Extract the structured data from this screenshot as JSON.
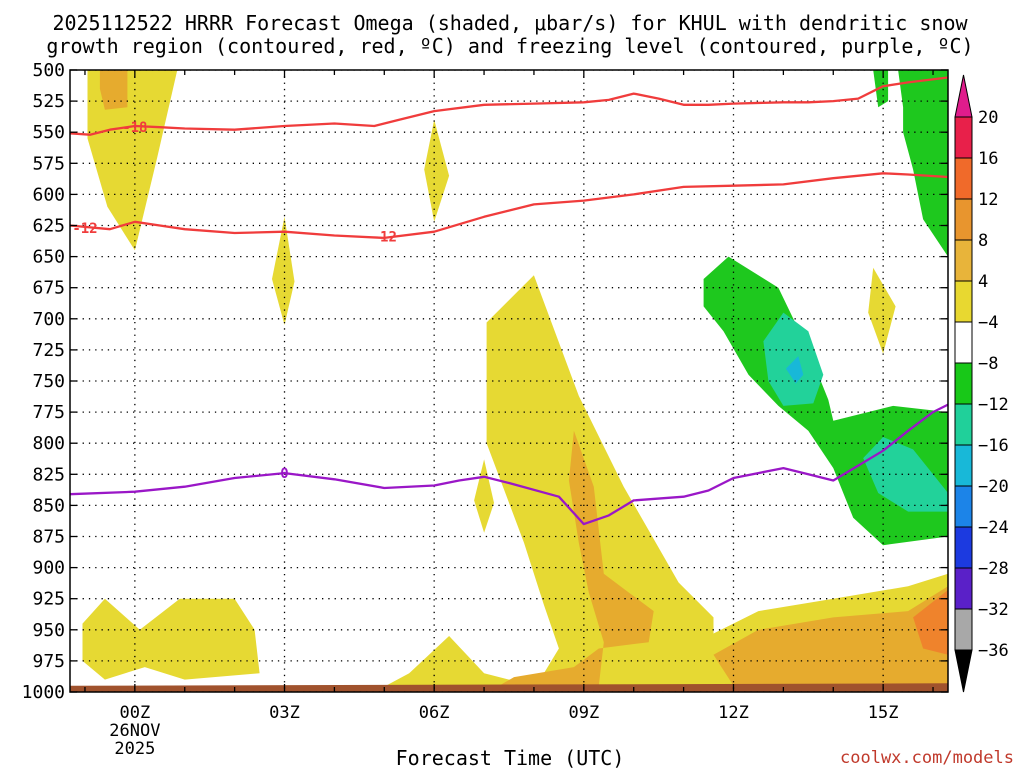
{
  "chart_data": {
    "type": "heatmap",
    "title_line1": "2025112522 HRRR Forecast Omega (shaded, μbar/s) for KHUL with dendritic snow",
    "title_line2": "growth region (contoured, red, ºC) and freezing level (contoured, purple, ºC)",
    "xlabel": "Forecast Time (UTC)",
    "credit": "coolwx.com/models",
    "x_range": [
      -1.3,
      16.3
    ],
    "y_range": [
      500,
      1000
    ],
    "y_ticks": [
      500,
      525,
      550,
      575,
      600,
      625,
      650,
      675,
      700,
      725,
      750,
      775,
      800,
      825,
      850,
      875,
      900,
      925,
      950,
      975,
      1000
    ],
    "x_ticks": [
      {
        "hour": 0,
        "label": "00Z",
        "sub1": "26NOV",
        "sub2": "2025"
      },
      {
        "hour": 3,
        "label": "03Z",
        "sub1": "",
        "sub2": ""
      },
      {
        "hour": 6,
        "label": "06Z",
        "sub1": "",
        "sub2": ""
      },
      {
        "hour": 9,
        "label": "09Z",
        "sub1": "",
        "sub2": ""
      },
      {
        "hour": 12,
        "label": "12Z",
        "sub1": "",
        "sub2": ""
      },
      {
        "hour": 15,
        "label": "15Z",
        "sub1": "",
        "sub2": ""
      }
    ],
    "colorbar": {
      "labels": [
        "20",
        "16",
        "12",
        "8",
        "4",
        "−4",
        "−8",
        "−12",
        "−16",
        "−20",
        "−24",
        "−28",
        "−32",
        "−36"
      ],
      "colors": [
        "#e8204a",
        "#f06a2a",
        "#e8952e",
        "#e8b43a",
        "#e8d830",
        "#ffffff",
        "#18c818",
        "#20d09a",
        "#18b8d8",
        "#1c84e8",
        "#1c3ae0",
        "#5a20c8",
        "#a010c8",
        "#a8a8a8"
      ],
      "top_arrow_color": "#e01c8c",
      "bottom_arrow_color": "#000000"
    },
    "omega_regions": [
      {
        "bin": "4 to 8",
        "color": "#e6d933",
        "points": [
          [
            -0.95,
            500
          ],
          [
            0.85,
            500
          ],
          [
            0.45,
            570
          ],
          [
            0.0,
            645
          ],
          [
            -0.55,
            610
          ],
          [
            -0.95,
            555
          ]
        ]
      },
      {
        "bin": "8 to 12",
        "color": "#e6ab2e",
        "points": [
          [
            -0.7,
            500
          ],
          [
            -0.15,
            500
          ],
          [
            -0.15,
            530
          ],
          [
            -0.6,
            532
          ],
          [
            -0.7,
            515
          ]
        ]
      },
      {
        "bin": "4 to 8",
        "color": "#e6d933",
        "points": [
          [
            6.0,
            540
          ],
          [
            6.3,
            585
          ],
          [
            6.0,
            622
          ],
          [
            5.8,
            580
          ]
        ]
      },
      {
        "bin": "4 to 8",
        "color": "#e6d933",
        "points": [
          [
            3.0,
            618
          ],
          [
            3.2,
            670
          ],
          [
            3.0,
            705
          ],
          [
            2.75,
            668
          ]
        ]
      },
      {
        "bin": "4 to 8",
        "color": "#e6d933",
        "points": [
          [
            7.0,
            813
          ],
          [
            7.2,
            848
          ],
          [
            7.0,
            872
          ],
          [
            6.8,
            846
          ]
        ]
      },
      {
        "bin": "4 to 8",
        "color": "#e6d933",
        "points": [
          [
            14.8,
            659
          ],
          [
            15.25,
            690
          ],
          [
            15.0,
            728
          ],
          [
            14.7,
            695
          ]
        ]
      },
      {
        "bin": "4 to 8",
        "color": "#e6d933",
        "points": [
          [
            7.05,
            703
          ],
          [
            8.0,
            665
          ],
          [
            8.9,
            762
          ],
          [
            9.8,
            835
          ],
          [
            10.9,
            912
          ],
          [
            11.6,
            940
          ],
          [
            11.6,
            1000
          ],
          [
            9.2,
            1000
          ],
          [
            8.8,
            985
          ],
          [
            7.5,
            990
          ],
          [
            7.0,
            985
          ],
          [
            6.3,
            955
          ],
          [
            5.5,
            985
          ],
          [
            4.8,
            1000
          ],
          [
            8.6,
            1000
          ],
          [
            8.2,
            985
          ],
          [
            8.5,
            965
          ],
          [
            8.2,
            930
          ],
          [
            7.8,
            880
          ],
          [
            7.05,
            800
          ]
        ]
      },
      {
        "bin": "4 to 8",
        "color": "#e6d933",
        "points": [
          [
            -1.05,
            945
          ],
          [
            -0.6,
            925
          ],
          [
            0.1,
            950
          ],
          [
            0.9,
            925
          ],
          [
            2.0,
            925
          ],
          [
            2.4,
            950
          ],
          [
            2.5,
            985
          ],
          [
            1.0,
            990
          ],
          [
            0.2,
            980
          ],
          [
            -0.6,
            990
          ],
          [
            -1.05,
            975
          ]
        ]
      },
      {
        "bin": "4 to 8",
        "color": "#e6d933",
        "points": [
          [
            11.5,
            955
          ],
          [
            12.5,
            935
          ],
          [
            14.0,
            925
          ],
          [
            15.5,
            915
          ],
          [
            16.3,
            905
          ],
          [
            16.3,
            1000
          ],
          [
            11.5,
            1000
          ]
        ]
      },
      {
        "bin": "8 to 12",
        "color": "#e6ab2e",
        "points": [
          [
            8.8,
            790
          ],
          [
            9.2,
            835
          ],
          [
            9.4,
            905
          ],
          [
            9.9,
            920
          ],
          [
            10.4,
            935
          ],
          [
            10.3,
            960
          ],
          [
            9.3,
            965
          ],
          [
            8.8,
            980
          ],
          [
            7.6,
            988
          ],
          [
            7.3,
            995
          ],
          [
            9.3,
            995
          ],
          [
            9.4,
            960
          ],
          [
            9.1,
            920
          ],
          [
            8.9,
            880
          ],
          [
            8.7,
            830
          ]
        ]
      },
      {
        "bin": "8 to 12",
        "color": "#e6ab2e",
        "points": [
          [
            11.6,
            970
          ],
          [
            12.5,
            950
          ],
          [
            14.0,
            940
          ],
          [
            15.5,
            935
          ],
          [
            16.3,
            915
          ],
          [
            16.3,
            995
          ],
          [
            12.0,
            995
          ]
        ]
      },
      {
        "bin": "12 to 16",
        "color": "#ef832c",
        "points": [
          [
            15.6,
            940
          ],
          [
            16.3,
            918
          ],
          [
            16.3,
            970
          ],
          [
            15.8,
            965
          ]
        ]
      },
      {
        "bin": "-8 to -4",
        "color": "#1ec81e",
        "points": [
          [
            14.8,
            500
          ],
          [
            15.1,
            500
          ],
          [
            15.1,
            525
          ],
          [
            14.9,
            530
          ]
        ]
      },
      {
        "bin": "-8 to -4",
        "color": "#1ec81e",
        "points": [
          [
            15.3,
            500
          ],
          [
            16.3,
            500
          ],
          [
            16.3,
            650
          ],
          [
            15.8,
            620
          ],
          [
            15.6,
            580
          ],
          [
            15.4,
            550
          ],
          [
            15.4,
            530
          ]
        ]
      },
      {
        "bin": "-8 to -4",
        "color": "#1ec81e",
        "points": [
          [
            11.4,
            668
          ],
          [
            11.9,
            650
          ],
          [
            12.9,
            675
          ],
          [
            13.5,
            725
          ],
          [
            13.9,
            765
          ],
          [
            14.0,
            782
          ],
          [
            15.2,
            770
          ],
          [
            16.3,
            775
          ],
          [
            16.3,
            875
          ],
          [
            15.0,
            882
          ],
          [
            14.4,
            860
          ],
          [
            14.0,
            820
          ],
          [
            13.5,
            790
          ],
          [
            12.9,
            770
          ],
          [
            12.3,
            745
          ],
          [
            11.8,
            710
          ],
          [
            11.4,
            690
          ]
        ]
      },
      {
        "bin": "-12 to -8",
        "color": "#22d29a",
        "points": [
          [
            12.6,
            718
          ],
          [
            13.0,
            695
          ],
          [
            13.5,
            710
          ],
          [
            13.8,
            745
          ],
          [
            13.6,
            768
          ],
          [
            13.0,
            770
          ],
          [
            12.7,
            750
          ]
        ]
      },
      {
        "bin": "-12 to -8",
        "color": "#22d29a",
        "points": [
          [
            14.6,
            812
          ],
          [
            15.0,
            795
          ],
          [
            15.6,
            805
          ],
          [
            16.0,
            825
          ],
          [
            16.3,
            840
          ],
          [
            16.3,
            855
          ],
          [
            15.5,
            855
          ],
          [
            14.9,
            840
          ]
        ]
      },
      {
        "bin": "-16 to -12",
        "color": "#18b8d8",
        "points": [
          [
            13.05,
            740
          ],
          [
            13.3,
            730
          ],
          [
            13.4,
            745
          ],
          [
            13.25,
            752
          ]
        ]
      }
    ],
    "surface": {
      "color": "#a0522d",
      "points": [
        [
          -1.3,
          995
        ],
        [
          16.3,
          993
        ],
        [
          16.3,
          1000
        ],
        [
          -1.3,
          1000
        ]
      ]
    },
    "contours": [
      {
        "color": "#f03c3c",
        "label": "-18",
        "label_at": [
          0.0,
          546
        ],
        "points": [
          [
            -1.3,
            551
          ],
          [
            -0.9,
            552
          ],
          [
            -0.5,
            548
          ],
          [
            0.0,
            545
          ],
          [
            0.5,
            546
          ],
          [
            1.0,
            547
          ],
          [
            2.0,
            548
          ],
          [
            3.0,
            545
          ],
          [
            4.0,
            543
          ],
          [
            4.8,
            545
          ],
          [
            5.3,
            540
          ],
          [
            6.0,
            533
          ],
          [
            7.0,
            528
          ],
          [
            8.0,
            527
          ],
          [
            9.0,
            526
          ],
          [
            9.5,
            524
          ],
          [
            10.0,
            519
          ],
          [
            10.5,
            523
          ],
          [
            11.0,
            528
          ],
          [
            11.5,
            528
          ],
          [
            12.0,
            527
          ],
          [
            13.0,
            526
          ],
          [
            13.5,
            526
          ],
          [
            14.0,
            525
          ],
          [
            14.5,
            523
          ],
          [
            15.0,
            513
          ],
          [
            15.5,
            510
          ],
          [
            16.3,
            506
          ]
        ]
      },
      {
        "color": "#f03c3c",
        "label": "-12",
        "label_at": [
          -1.0,
          627
        ],
        "label2": "-12",
        "label2_at": [
          5.0,
          634
        ],
        "points": [
          [
            -1.3,
            625
          ],
          [
            -0.5,
            628
          ],
          [
            0.0,
            622
          ],
          [
            0.5,
            625
          ],
          [
            1.0,
            628
          ],
          [
            2.0,
            631
          ],
          [
            3.0,
            630
          ],
          [
            4.0,
            633
          ],
          [
            5.0,
            635
          ],
          [
            6.0,
            630
          ],
          [
            7.0,
            618
          ],
          [
            8.0,
            608
          ],
          [
            9.0,
            605
          ],
          [
            10.0,
            600
          ],
          [
            11.0,
            594
          ],
          [
            12.0,
            593
          ],
          [
            13.0,
            592
          ],
          [
            14.0,
            587
          ],
          [
            15.0,
            583
          ],
          [
            15.5,
            584
          ],
          [
            16.3,
            586
          ]
        ]
      },
      {
        "color": "#9a17c7",
        "label": "0",
        "label_at": [
          3.0,
          824
        ],
        "points": [
          [
            -1.3,
            841
          ],
          [
            0.0,
            839
          ],
          [
            1.0,
            835
          ],
          [
            2.0,
            828
          ],
          [
            3.0,
            824
          ],
          [
            4.0,
            829
          ],
          [
            5.0,
            836
          ],
          [
            6.0,
            834
          ],
          [
            6.5,
            830
          ],
          [
            7.0,
            827
          ],
          [
            7.5,
            832
          ],
          [
            8.5,
            843
          ],
          [
            9.0,
            865
          ],
          [
            9.5,
            858
          ],
          [
            10.0,
            846
          ],
          [
            11.0,
            843
          ],
          [
            11.5,
            838
          ],
          [
            12.0,
            828
          ],
          [
            13.0,
            820
          ],
          [
            13.5,
            825
          ],
          [
            14.0,
            830
          ],
          [
            14.5,
            818
          ],
          [
            15.0,
            806
          ],
          [
            15.5,
            790
          ],
          [
            16.0,
            775
          ],
          [
            16.3,
            769
          ]
        ]
      }
    ]
  }
}
